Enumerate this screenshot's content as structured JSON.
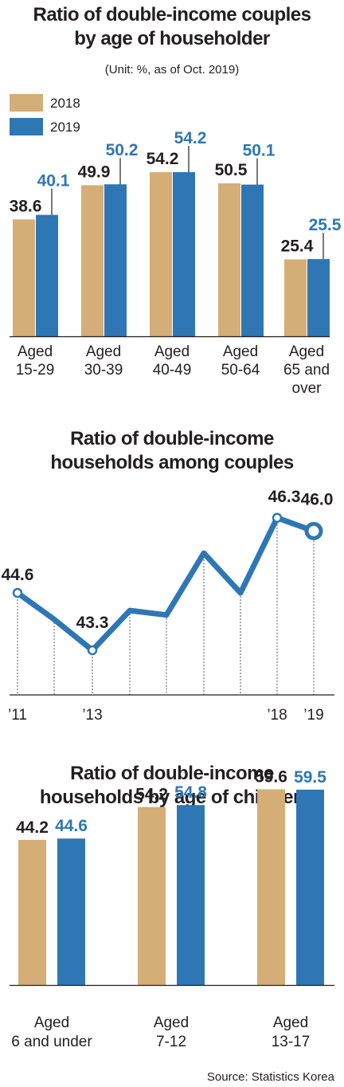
{
  "colors": {
    "y2018": "#d4ae76",
    "y2019": "#2e77b4",
    "text": "#231f20",
    "blue_text": "#2e77b4",
    "line": "#2e77b4"
  },
  "chart_data": [
    {
      "type": "bar",
      "title_lines": [
        "Ratio of double-income couples",
        "by age of householder"
      ],
      "subtitle": "(Unit: %, as of Oct. 2019)",
      "legend": [
        "2018",
        "2019"
      ],
      "categories": [
        [
          "Aged",
          "15-29"
        ],
        [
          "Aged",
          "30-39"
        ],
        [
          "Aged",
          "40-49"
        ],
        [
          "Aged",
          "50-64"
        ],
        [
          "Aged",
          "65 and",
          "over"
        ]
      ],
      "series": [
        {
          "name": "2018",
          "values": [
            38.6,
            49.9,
            54.2,
            50.5,
            25.4
          ],
          "labels": [
            "38.6",
            "49.9",
            "54.2",
            "50.5",
            "25.4"
          ]
        },
        {
          "name": "2019",
          "values": [
            40.1,
            50.2,
            54.2,
            50.1,
            25.5
          ],
          "labels": [
            "40.1",
            "50.2",
            "54.2",
            "50.1",
            "25.5"
          ]
        }
      ]
    },
    {
      "type": "line",
      "title_lines": [
        "Ratio of double-income",
        "households among couples"
      ],
      "x": [
        "2011",
        "2012",
        "2013",
        "2014",
        "2015",
        "2016",
        "2017",
        "2018",
        "2019"
      ],
      "x_tick_labels": [
        "’11",
        "",
        "’13",
        "",
        "",
        "",
        "",
        "’18",
        "’19"
      ],
      "values": [
        44.6,
        44.0,
        43.3,
        44.2,
        44.1,
        45.5,
        44.6,
        46.3,
        46.0
      ],
      "labeled_points": [
        {
          "index": 0,
          "label": "44.6"
        },
        {
          "index": 2,
          "label": "43.3"
        },
        {
          "index": 7,
          "label": "46.3"
        },
        {
          "index": 8,
          "label": "46.0"
        }
      ]
    },
    {
      "type": "bar",
      "title_lines": [
        "Ratio of double-income",
        "households by age of children"
      ],
      "categories": [
        [
          "Aged",
          "6 and under"
        ],
        [
          "Aged",
          "7-12"
        ],
        [
          "Aged",
          "13-17"
        ]
      ],
      "series": [
        {
          "name": "2018",
          "values": [
            44.2,
            54.2,
            59.6
          ],
          "labels": [
            "44.2",
            "54.2",
            "59.6"
          ]
        },
        {
          "name": "2019",
          "values": [
            44.6,
            54.8,
            59.5
          ],
          "labels": [
            "44.6",
            "54.8",
            "59.5"
          ]
        }
      ]
    }
  ],
  "source": "Source: Statistics Korea"
}
